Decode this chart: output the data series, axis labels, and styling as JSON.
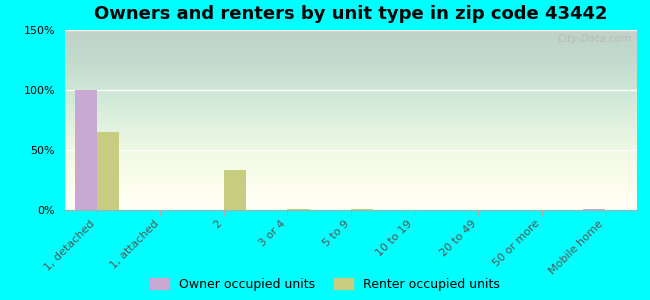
{
  "title": "Owners and renters by unit type in zip code 43442",
  "categories": [
    "1, detached",
    "1, attached",
    "2",
    "3 or 4",
    "5 to 9",
    "10 to 19",
    "20 to 49",
    "50 or more",
    "Mobile home"
  ],
  "owner_values": [
    100,
    0,
    0,
    0,
    0,
    0,
    0,
    0,
    1
  ],
  "renter_values": [
    65,
    0,
    33,
    1,
    1,
    0,
    0,
    0,
    0
  ],
  "owner_color": "#c9a8d4",
  "renter_color": "#c8cc7e",
  "bar_width": 0.35,
  "ylim": [
    0,
    150
  ],
  "yticks": [
    0,
    50,
    100,
    150
  ],
  "ytick_labels": [
    "0%",
    "50%",
    "100%",
    "150%"
  ],
  "background_color": "#00ffff",
  "title_fontsize": 13,
  "axis_tick_fontsize": 8,
  "legend_fontsize": 9,
  "watermark": "City-Data.com"
}
